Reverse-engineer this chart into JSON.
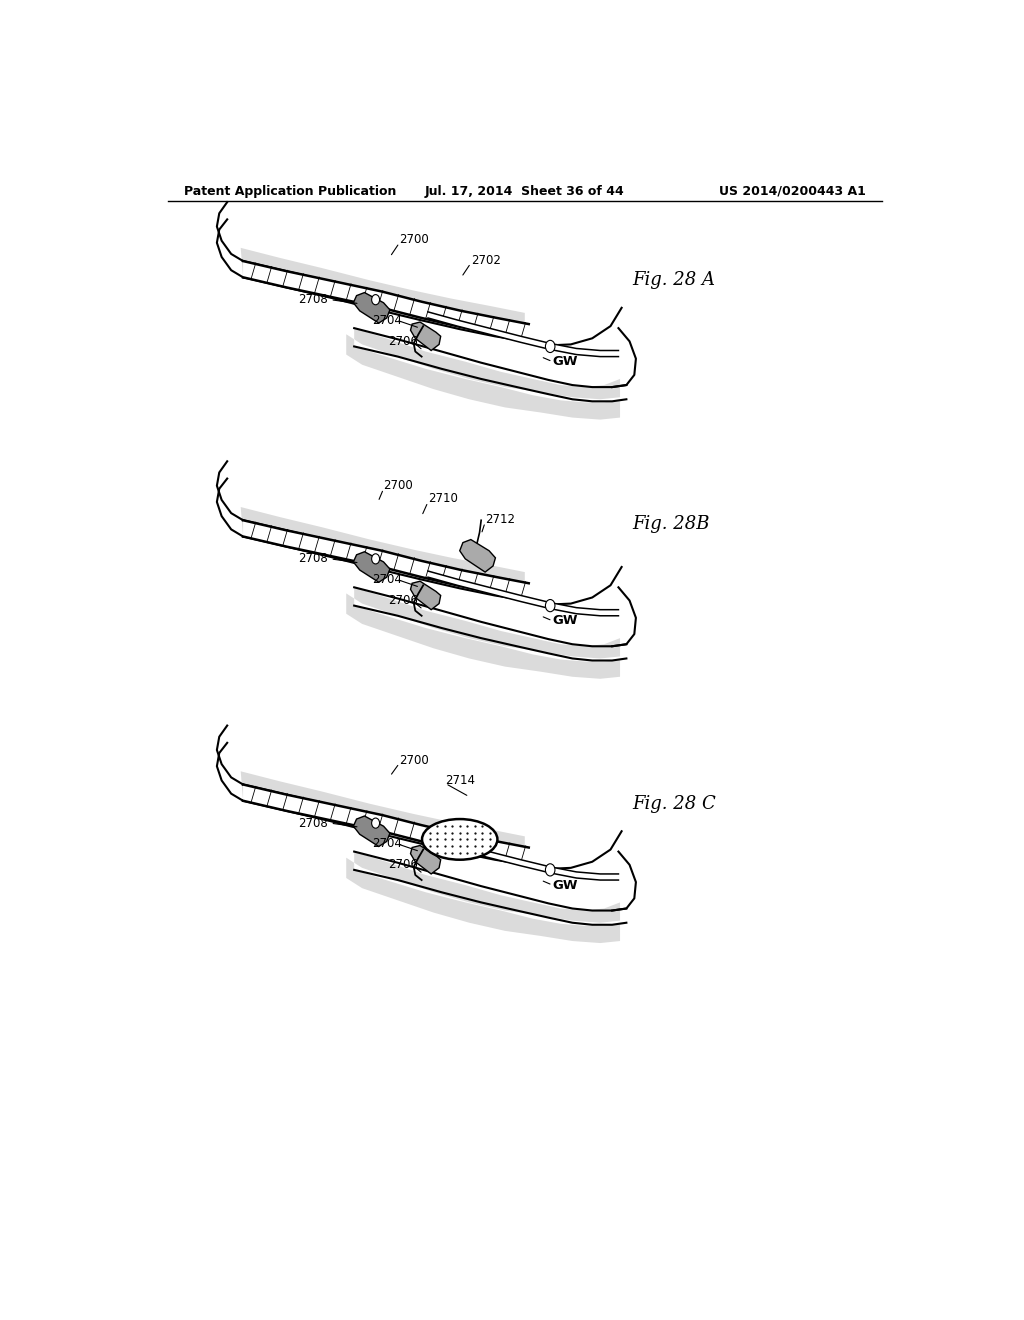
{
  "bg_color": "#ffffff",
  "header_left": "Patent Application Publication",
  "header_mid": "Jul. 17, 2014  Sheet 36 of 44",
  "header_right": "US 2014/0200443 A1",
  "fig_labels": [
    "Fig. 28 A",
    "Fig. 28B",
    "Fig. 28 C"
  ]
}
